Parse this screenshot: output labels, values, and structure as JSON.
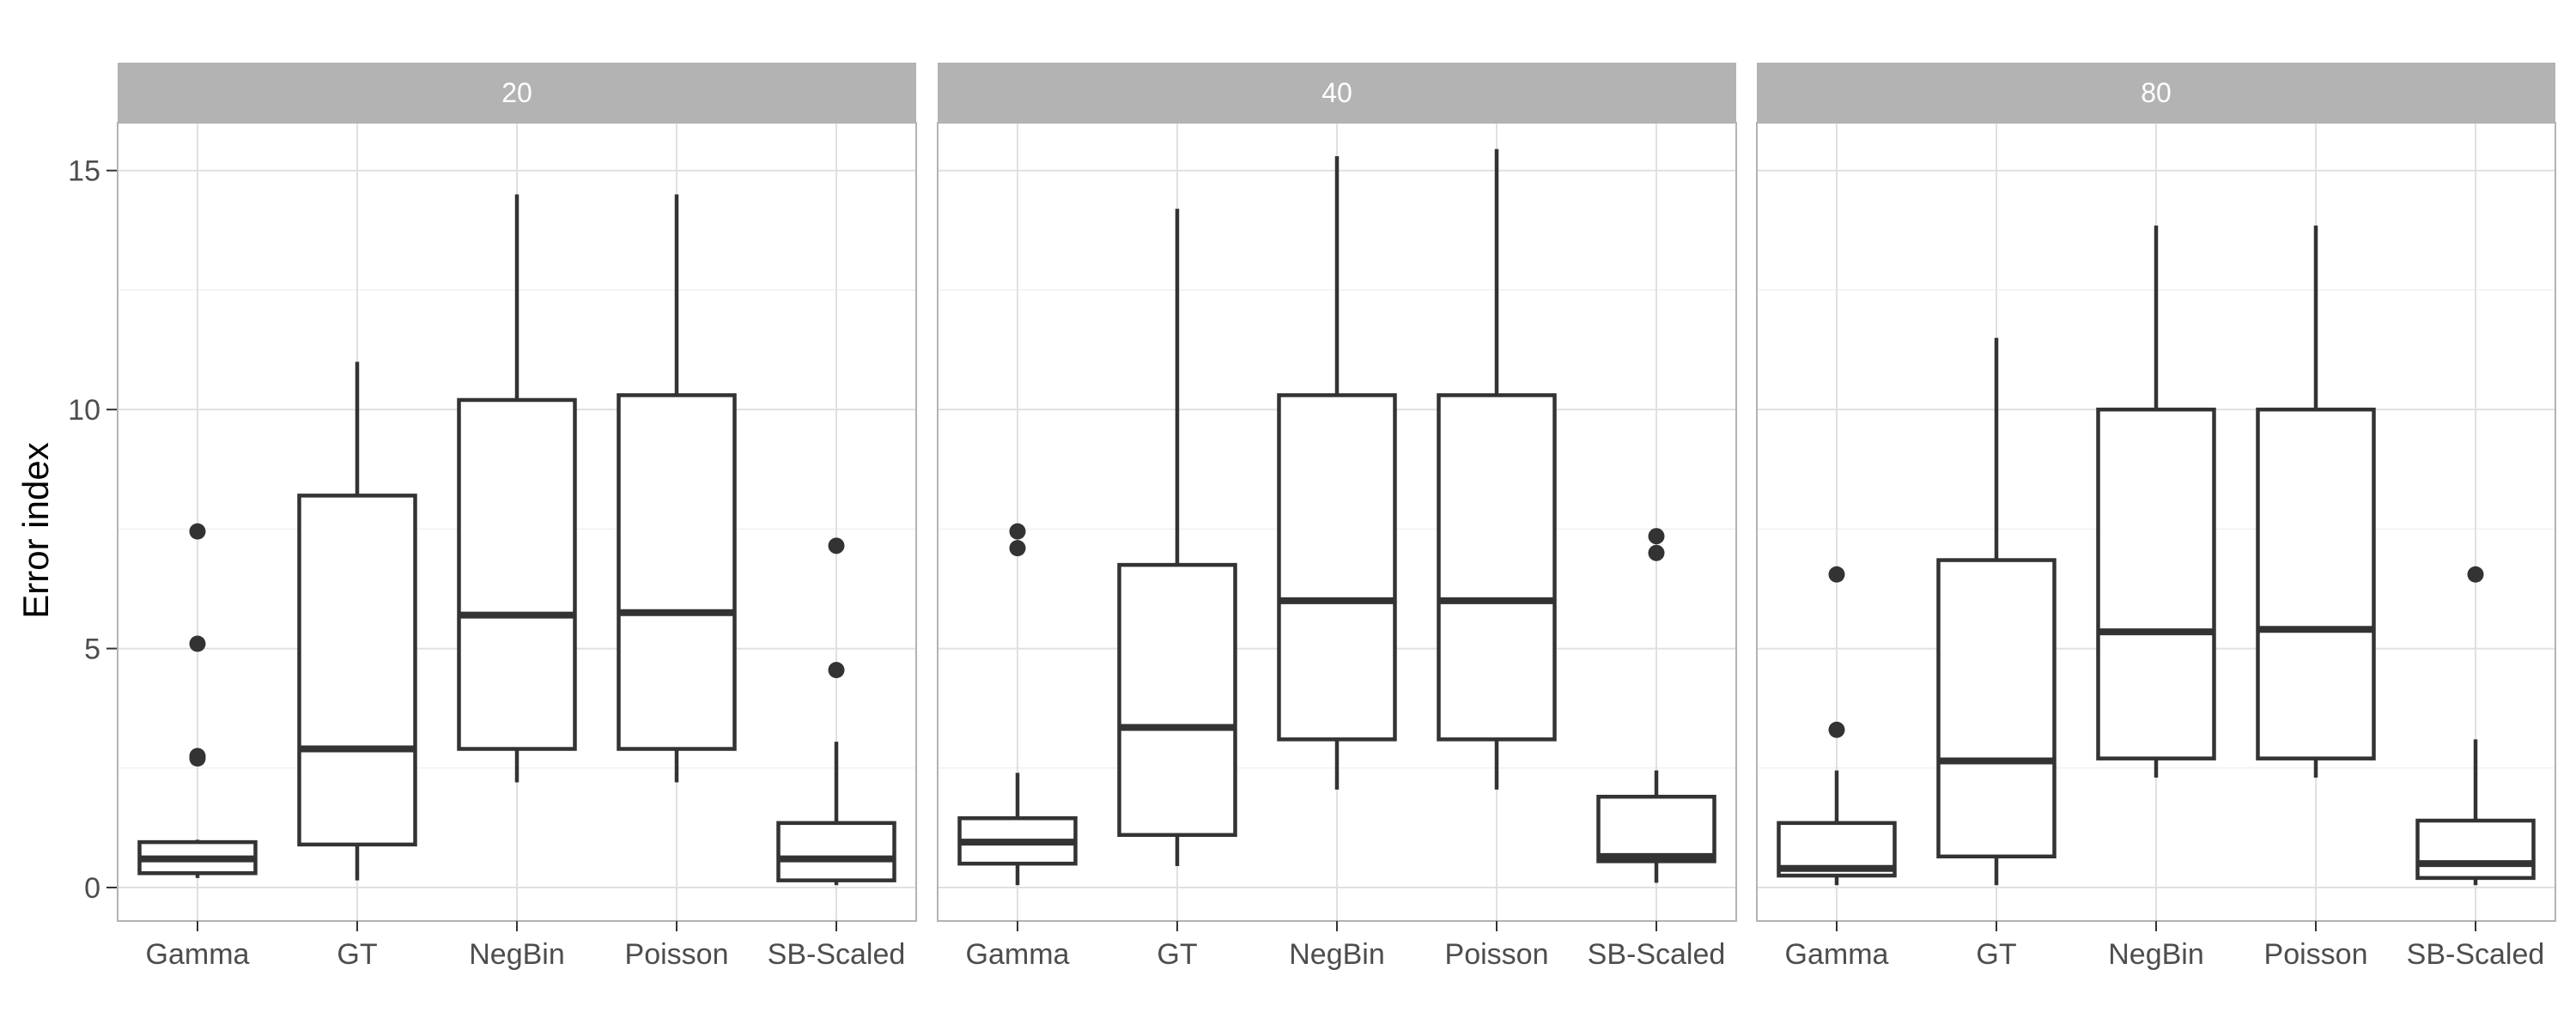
{
  "chart_data": {
    "type": "boxplot",
    "title": "",
    "xlabel": "",
    "ylabel": "Error index",
    "ylim": [
      -0.7,
      16.0
    ],
    "yticks": [
      0,
      5,
      10,
      15
    ],
    "grid": true,
    "categories": [
      "Gamma",
      "GT",
      "NegBin",
      "Poisson",
      "SB-Scaled"
    ],
    "panels": [
      {
        "label": "20",
        "boxes": [
          {
            "category": "Gamma",
            "min": 0.2,
            "q1": 0.3,
            "median": 0.6,
            "q3": 0.95,
            "max": 1.0,
            "outliers": [
              2.7,
              2.75,
              5.1,
              7.45
            ]
          },
          {
            "category": "GT",
            "min": 0.15,
            "q1": 0.9,
            "median": 2.9,
            "q3": 8.2,
            "max": 11.0,
            "outliers": []
          },
          {
            "category": "NegBin",
            "min": 2.2,
            "q1": 2.9,
            "median": 5.7,
            "q3": 10.2,
            "max": 14.5,
            "outliers": []
          },
          {
            "category": "Poisson",
            "min": 2.2,
            "q1": 2.9,
            "median": 5.75,
            "q3": 10.3,
            "max": 14.5,
            "outliers": []
          },
          {
            "category": "SB-Scaled",
            "min": 0.05,
            "q1": 0.15,
            "median": 0.6,
            "q3": 1.35,
            "max": 3.05,
            "outliers": [
              4.55,
              7.15
            ]
          }
        ]
      },
      {
        "label": "40",
        "boxes": [
          {
            "category": "Gamma",
            "min": 0.05,
            "q1": 0.5,
            "median": 0.95,
            "q3": 1.45,
            "max": 2.4,
            "outliers": [
              7.1,
              7.45
            ]
          },
          {
            "category": "GT",
            "min": 0.45,
            "q1": 1.1,
            "median": 3.35,
            "q3": 6.75,
            "max": 14.2,
            "outliers": []
          },
          {
            "category": "NegBin",
            "min": 2.05,
            "q1": 3.1,
            "median": 6.0,
            "q3": 10.3,
            "max": 15.3,
            "outliers": []
          },
          {
            "category": "Poisson",
            "min": 2.05,
            "q1": 3.1,
            "median": 6.0,
            "q3": 10.3,
            "max": 15.45,
            "outliers": []
          },
          {
            "category": "SB-Scaled",
            "min": 0.1,
            "q1": 0.55,
            "median": 0.65,
            "q3": 1.9,
            "max": 2.45,
            "outliers": [
              7.0,
              7.35
            ]
          }
        ]
      },
      {
        "label": "80",
        "boxes": [
          {
            "category": "Gamma",
            "min": 0.05,
            "q1": 0.25,
            "median": 0.4,
            "q3": 1.35,
            "max": 2.45,
            "outliers": [
              3.3,
              6.55
            ]
          },
          {
            "category": "GT",
            "min": 0.05,
            "q1": 0.65,
            "median": 2.65,
            "q3": 6.85,
            "max": 11.5,
            "outliers": []
          },
          {
            "category": "NegBin",
            "min": 2.3,
            "q1": 2.7,
            "median": 5.35,
            "q3": 10.0,
            "max": 13.85,
            "outliers": []
          },
          {
            "category": "Poisson",
            "min": 2.3,
            "q1": 2.7,
            "median": 5.4,
            "q3": 10.0,
            "max": 13.85,
            "outliers": []
          },
          {
            "category": "SB-Scaled",
            "min": 0.05,
            "q1": 0.2,
            "median": 0.5,
            "q3": 1.4,
            "max": 3.1,
            "outliers": [
              6.55
            ]
          }
        ]
      }
    ]
  },
  "colors": {
    "strip_background": "#b3b3b3",
    "strip_text": "#ffffff",
    "box_outline": "#333333",
    "box_fill": "#ffffff",
    "grid": "#e0e0e0",
    "tick_text": "#4d4d4d"
  }
}
